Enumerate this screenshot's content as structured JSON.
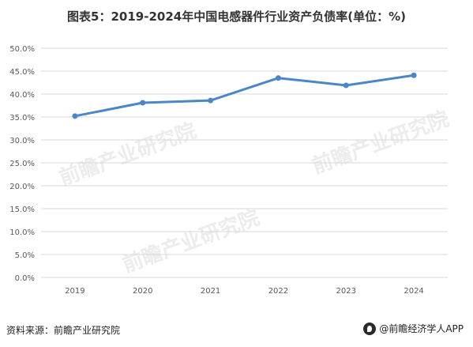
{
  "title": "图表5：2019-2024年中国电感器件行业资产负债率(单位：%)",
  "footer": {
    "source": "资料来源：前瞻产业研究院",
    "brand": "@前瞻经济学人APP"
  },
  "watermark_text": "前瞻产业研究院",
  "colors": {
    "line": "#4a86c8",
    "grid": "#d9d9d9",
    "axis_text": "#595959"
  },
  "chart_data": {
    "type": "line",
    "title": "图表5：2019-2024年中国电感器件行业资产负债率(单位：%)",
    "categories": [
      "2019",
      "2020",
      "2021",
      "2022",
      "2023",
      "2024"
    ],
    "series": [
      {
        "values": [
          35.2,
          38.1,
          38.6,
          43.5,
          41.9,
          44.1
        ]
      }
    ],
    "ylim": [
      0,
      50
    ],
    "yticks": [
      "0.0%",
      "5.0%",
      "10.0%",
      "15.0%",
      "20.0%",
      "25.0%",
      "30.0%",
      "35.0%",
      "40.0%",
      "45.0%",
      "50.0%"
    ],
    "grid": true,
    "legend": "none"
  }
}
